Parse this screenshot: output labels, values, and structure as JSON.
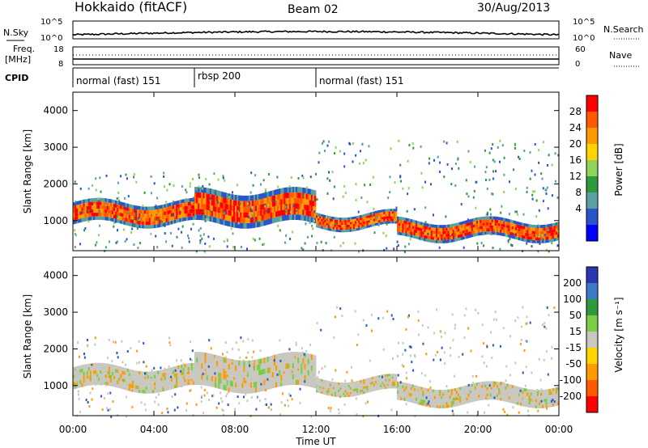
{
  "header": {
    "title": "Hokkaido (fitACF)",
    "beam": "Beam 02",
    "date": "30/Aug/2013"
  },
  "noise_panel": {
    "left_label": "N.Sky",
    "right_label": "N.Search",
    "left_ticks": [
      "10^5",
      "10^0"
    ],
    "right_ticks": [
      "10^5",
      "10^0"
    ]
  },
  "freq_panel": {
    "left_label_1": "Freq.",
    "left_label_2": "[MHz]",
    "right_label": "Nave",
    "left_ticks": [
      "18",
      "8"
    ],
    "right_ticks": [
      "60",
      "0"
    ]
  },
  "cpid": {
    "label": "CPID",
    "segments": [
      {
        "name": "normal (fast) 151",
        "start_h": 0,
        "end_h": 6
      },
      {
        "name": "rbsp 200",
        "start_h": 6,
        "end_h": 12
      },
      {
        "name": "normal (fast) 151",
        "start_h": 12,
        "end_h": 24
      }
    ]
  },
  "power_panel": {
    "ylabel": "Slant Range [km]",
    "cbar_label": "Power [dB]",
    "cbar_ticks": [
      "28",
      "24",
      "20",
      "16",
      "12",
      "8",
      "4"
    ],
    "cbar_colors": [
      "#ff0000",
      "#ff5a00",
      "#ff9a00",
      "#ffd400",
      "#8fd45a",
      "#2e9a3c",
      "#5aa0a0",
      "#2a55c8",
      "#0000ff"
    ]
  },
  "velocity_panel": {
    "ylabel": "Slant Range [km]",
    "cbar_label": "Velocity [m s⁻¹]",
    "cbar_ticks": [
      "200",
      "100",
      "50",
      "15",
      "-15",
      "-50",
      "-100",
      "-200"
    ],
    "cbar_colors": [
      "#2a35b0",
      "#3c7ac8",
      "#2e9a3c",
      "#7ccc48",
      "#c8c8c0",
      "#ffd400",
      "#ff9a00",
      "#ff5a00",
      "#ff0000"
    ]
  },
  "xaxis": {
    "label": "Time UT",
    "ticks": [
      "00:00",
      "04:00",
      "08:00",
      "12:00",
      "16:00",
      "20:00",
      "00:00"
    ]
  },
  "yaxis": {
    "ticks": [
      "1000",
      "2000",
      "3000",
      "4000"
    ]
  },
  "chart_data": {
    "type": "heatmap",
    "title": "Hokkaido (fitACF)",
    "xlabel": "Time UT",
    "ylabel": "Slant Range [km]",
    "xlim": [
      0,
      24
    ],
    "ylim": [
      180,
      4500
    ],
    "power_dB_range": [
      0,
      30
    ],
    "velocity_range": [
      -200,
      200
    ],
    "power_bands": [
      {
        "t": [
          0,
          6
        ],
        "range_km": [
          900,
          1500
        ],
        "power_dB": 26
      },
      {
        "t": [
          6,
          12
        ],
        "range_km": [
          900,
          1800
        ],
        "power_dB": 28
      },
      {
        "t": [
          12,
          16
        ],
        "range_km": [
          800,
          1200
        ],
        "power_dB": 18
      },
      {
        "t": [
          16,
          24
        ],
        "range_km": [
          500,
          1000
        ],
        "power_dB": 20
      }
    ]
  }
}
